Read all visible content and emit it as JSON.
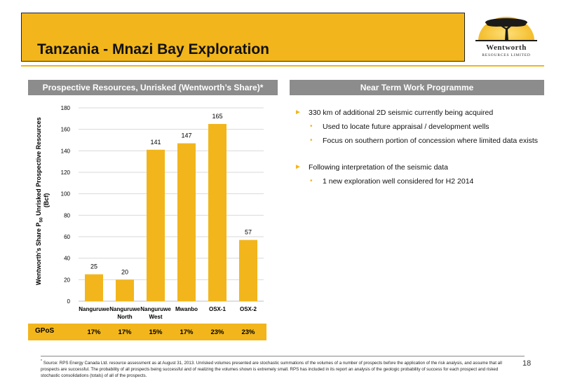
{
  "slide": {
    "title": "Tanzania - Mnazi Bay Exploration",
    "logo_text": "Wentworth",
    "logo_sub": "RESOURCES LIMITED",
    "page_number": "18"
  },
  "left_panel": {
    "header": "Prospective Resources, Unrisked (Wentworth’s Share)*"
  },
  "right_panel": {
    "header": "Near Term Work Programme",
    "bullets": [
      {
        "text": "330 km of additional 2D seismic currently being acquired",
        "sub": [
          "Used to locate future appraisal / development wells",
          "Focus on southern portion of concession where limited data exists"
        ]
      },
      {
        "text": "Following interpretation of the seismic data",
        "sub": [
          "1 new exploration well considered for H2 2014"
        ]
      }
    ]
  },
  "chart_data": {
    "type": "bar",
    "categories": [
      "Nanguruwe",
      "Nanguruwe North",
      "Nanguruwe West",
      "Mwanbo",
      "OSX-1",
      "OSX-2"
    ],
    "category_lines": [
      [
        "Nanguruwe"
      ],
      [
        "Nanguruwe",
        "North"
      ],
      [
        "Nanguruwe",
        "West"
      ],
      [
        "Mwanbo"
      ],
      [
        "OSX-1"
      ],
      [
        "OSX-2"
      ]
    ],
    "values": [
      25,
      20,
      141,
      147,
      165,
      57
    ],
    "ylim": [
      0,
      180
    ],
    "yticks": [
      0,
      20,
      40,
      60,
      80,
      100,
      120,
      140,
      160,
      180
    ],
    "ylabel_line1_pre": "Wentworth's Share P",
    "ylabel_sub": "50",
    "ylabel_line1_post": " Unrisked Prospective Resources",
    "ylabel_line2": "(Bcf)",
    "grid": true,
    "bar_color": "#f2b61c"
  },
  "gpos": {
    "label": "GPoS",
    "values": [
      "17%",
      "17%",
      "15%",
      "17%",
      "23%",
      "23%"
    ]
  },
  "footnote": {
    "mark": "*",
    "text": "Source: RPS Energy Canada Ltd. resource assessment as at August 31, 2013.  Unrisked volumes presented are stochastic summations of the volumes of a number of prospects before the application of the risk analysis, and assume that all prospects are successful. The probability of all prospects being successful and of realizing the volumes shown is extremely small. RPS has included in its report an analysis of the geologic probability of success for each prospect and risked stochastic consolidations (totals) of all of the prospects."
  }
}
